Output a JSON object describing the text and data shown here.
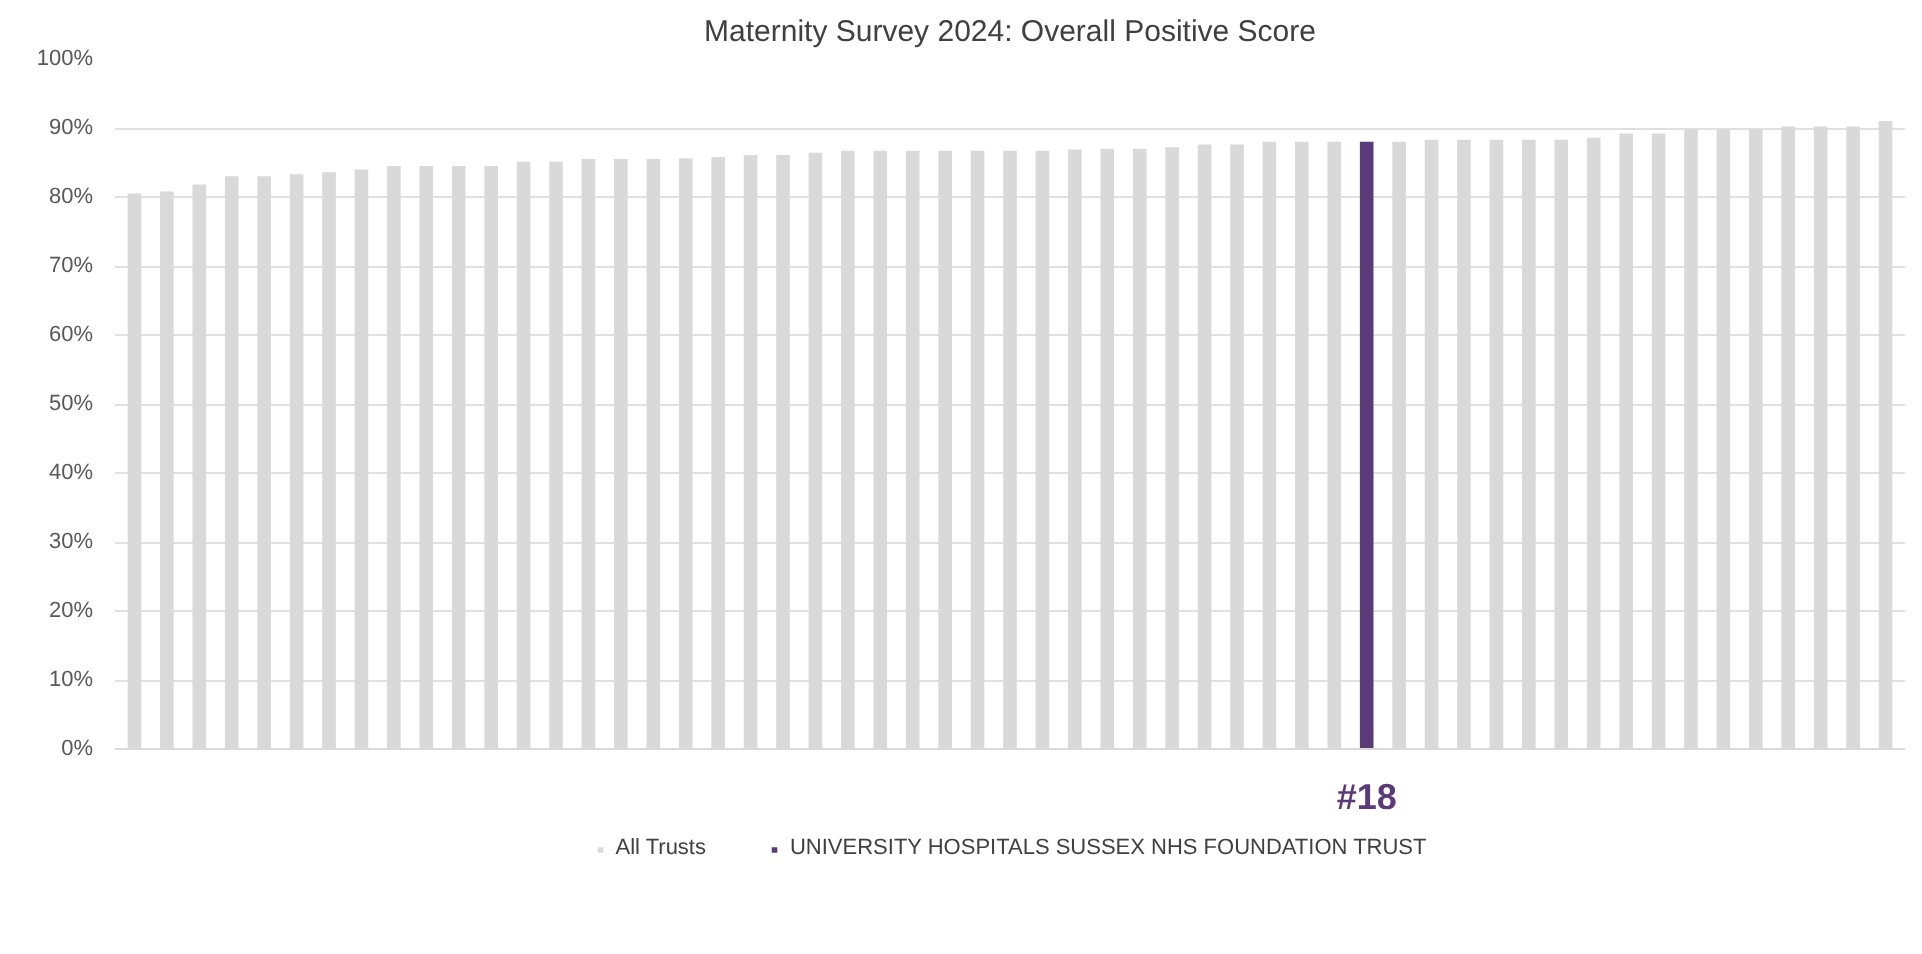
{
  "chart_data": {
    "type": "bar",
    "title": "Maternity Survey 2024: Overall Positive Score",
    "categories": [
      null,
      null,
      null,
      null,
      null,
      null,
      null,
      null,
      null,
      null,
      null,
      null,
      null,
      null,
      null,
      null,
      null,
      null,
      null,
      null,
      null,
      null,
      null,
      null,
      null,
      null,
      null,
      null,
      null,
      null,
      null,
      null,
      null,
      null,
      null,
      null,
      null,
      null,
      null,
      null,
      null,
      null,
      null,
      null,
      null,
      null,
      null,
      null,
      null,
      null,
      null,
      null,
      null,
      null,
      null
    ],
    "series": [
      {
        "name": "All Trusts",
        "color": "#d9d9d9",
        "values": [
          80.5,
          80.8,
          81.8,
          83.0,
          83.0,
          83.3,
          83.6,
          84.0,
          84.5,
          84.5,
          84.5,
          84.5,
          85.1,
          85.1,
          85.5,
          85.5,
          85.5,
          85.6,
          85.8,
          86.1,
          86.1,
          86.4,
          86.7,
          86.7,
          86.7,
          86.7,
          86.7,
          86.7,
          86.7,
          86.9,
          87.0,
          87.0,
          87.2,
          87.6,
          87.6,
          88.0,
          88.0,
          88.0,
          null,
          88.0,
          88.3,
          88.3,
          88.3,
          88.3,
          88.3,
          88.6,
          89.2,
          89.2,
          89.8,
          89.8,
          89.8,
          90.2,
          90.2,
          90.2,
          91.0
        ]
      },
      {
        "name": "UNIVERSITY HOSPITALS SUSSEX NHS FOUNDATION TRUST",
        "color": "#5b3a7a",
        "values": [
          null,
          null,
          null,
          null,
          null,
          null,
          null,
          null,
          null,
          null,
          null,
          null,
          null,
          null,
          null,
          null,
          null,
          null,
          null,
          null,
          null,
          null,
          null,
          null,
          null,
          null,
          null,
          null,
          null,
          null,
          null,
          null,
          null,
          null,
          null,
          null,
          null,
          null,
          88.0,
          null,
          null,
          null,
          null,
          null,
          null,
          null,
          null,
          null,
          null,
          null,
          null,
          null,
          null,
          null,
          null
        ]
      }
    ],
    "annotations": [
      "#18"
    ],
    "ylim": [
      0,
      100
    ],
    "yticks": [
      {
        "value": 0,
        "label": "0%"
      },
      {
        "value": 10,
        "label": "10%"
      },
      {
        "value": 20,
        "label": "20%"
      },
      {
        "value": 30,
        "label": "30%"
      },
      {
        "value": 40,
        "label": "40%"
      },
      {
        "value": 50,
        "label": "50%"
      },
      {
        "value": 60,
        "label": "60%"
      },
      {
        "value": 70,
        "label": "70%"
      },
      {
        "value": 80,
        "label": "80%"
      },
      {
        "value": 90,
        "label": "90%"
      },
      {
        "value": 100,
        "label": "100%"
      }
    ],
    "grid": "y",
    "legend": "bottom",
    "tick_labels": "y"
  }
}
